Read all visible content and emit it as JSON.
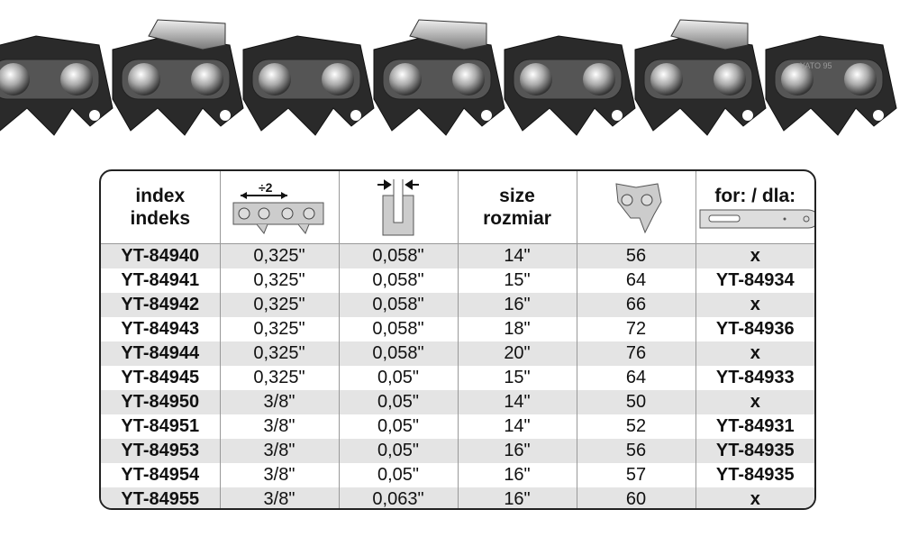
{
  "header": {
    "index": "index",
    "indeks": "indeks",
    "pitch_label": "÷2",
    "size": "size",
    "rozmiar": "rozmiar",
    "for": "for: / dla:"
  },
  "columns": [
    "index",
    "pitch",
    "gauge",
    "size",
    "links",
    "for"
  ],
  "rows": [
    [
      "YT-84940",
      "0,325\"",
      "0,058\"",
      "14\"",
      "56",
      "x"
    ],
    [
      "YT-84941",
      "0,325\"",
      "0,058\"",
      "15\"",
      "64",
      "YT-84934"
    ],
    [
      "YT-84942",
      "0,325\"",
      "0,058\"",
      "16\"",
      "66",
      "x"
    ],
    [
      "YT-84943",
      "0,325\"",
      "0,058\"",
      "18\"",
      "72",
      "YT-84936"
    ],
    [
      "YT-84944",
      "0,325\"",
      "0,058\"",
      "20\"",
      "76",
      "x"
    ],
    [
      "YT-84945",
      "0,325\"",
      "0,05\"",
      "15\"",
      "64",
      "YT-84933"
    ],
    [
      "YT-84950",
      "3/8\"",
      "0,05\"",
      "14\"",
      "50",
      "x"
    ],
    [
      "YT-84951",
      "3/8\"",
      "0,05\"",
      "14\"",
      "52",
      "YT-84931"
    ],
    [
      "YT-84953",
      "3/8\"",
      "0,05\"",
      "16\"",
      "56",
      "YT-84935"
    ],
    [
      "YT-84954",
      "3/8\"",
      "0,05\"",
      "16\"",
      "57",
      "YT-84935"
    ],
    [
      "YT-84955",
      "3/8\"",
      "0,063\"",
      "16\"",
      "60",
      "x"
    ]
  ],
  "chain_marking": "YATO 95",
  "colors": {
    "row_alt": "#e4e4e4",
    "chain": "#2a2a2a",
    "rivet": "#c8c8c8"
  }
}
